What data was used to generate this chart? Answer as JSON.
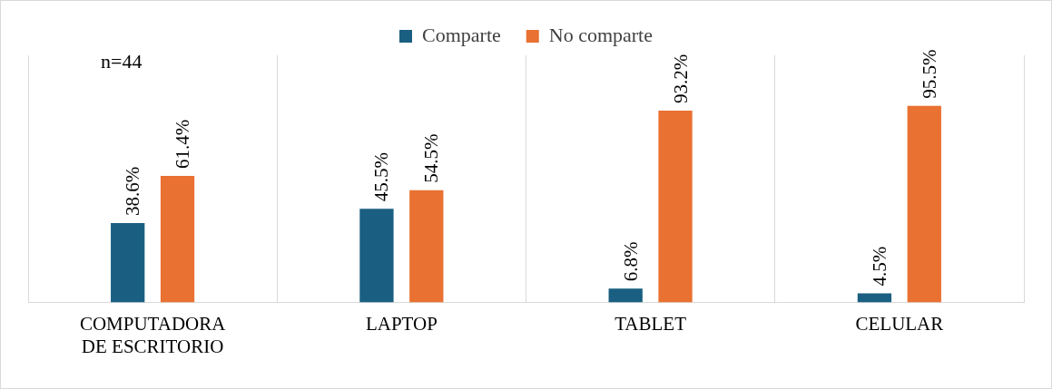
{
  "chart_data": {
    "type": "bar",
    "categories": [
      "COMPUTADORA DE ESCRITORIO",
      "LAPTOP",
      "TABLET",
      "CELULAR"
    ],
    "series": [
      {
        "name": "Comparte",
        "color": "#1a5f82",
        "values": [
          38.6,
          45.5,
          6.8,
          4.5
        ],
        "value_labels": [
          "38.6%",
          "45.5%",
          "6.8%",
          "4.5%"
        ]
      },
      {
        "name": "No comparte",
        "color": "#e97132",
        "values": [
          61.4,
          54.5,
          93.2,
          95.5
        ],
        "value_labels": [
          "61.4%",
          "54.5%",
          "93.2%",
          "95.5%"
        ]
      }
    ],
    "legend": "top",
    "grid": "x",
    "annotations": [
      "n=44"
    ]
  }
}
